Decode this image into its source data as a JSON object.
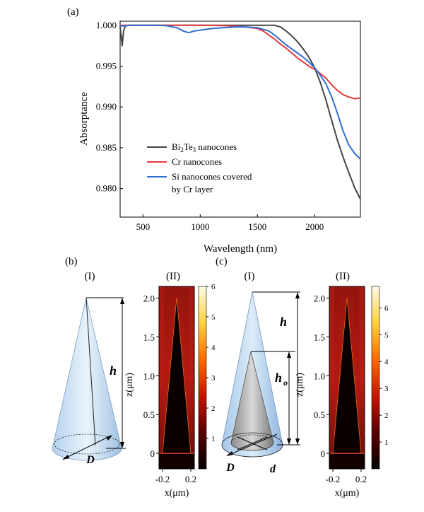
{
  "panels": {
    "a": {
      "label": "(a)"
    },
    "b": {
      "label": "(b)",
      "sub1": "(I)",
      "sub2": "(II)",
      "height_symbol": "h",
      "diameter_symbol": "D"
    },
    "c": {
      "label": "(c)",
      "sub1": "(I)",
      "sub2": "(II)",
      "height_symbol": "h",
      "inner_height_symbol": "h",
      "inner_height_subscript": "o",
      "diameter_symbol": "D",
      "inner_diameter_symbol": "d"
    }
  },
  "chart_data": [
    {
      "type": "line",
      "title": "",
      "xlabel": "Wavelength (nm)",
      "ylabel": "Absorptance",
      "xlim": [
        300,
        2400
      ],
      "ylim": [
        0.9765,
        1.0005
      ],
      "xticks": [
        500,
        1000,
        1500,
        2000
      ],
      "yticks": [
        0.98,
        0.985,
        0.99,
        0.995,
        1.0
      ],
      "ytick_labels": [
        "0.980",
        "0.985",
        "0.990",
        "0.995",
        "1.000"
      ],
      "legend_position": "lower-left",
      "series": [
        {
          "name": "Bi2Te3 nanocones",
          "name_parts": [
            "Bi",
            "2",
            "Te",
            "3",
            " nanocones"
          ],
          "color": "#444444",
          "x": [
            300,
            318,
            330,
            345,
            360,
            400,
            600,
            800,
            1000,
            1200,
            1400,
            1600,
            1650,
            1700,
            1750,
            1800,
            1850,
            1900,
            1950,
            2000,
            2050,
            2100,
            2150,
            2200,
            2250,
            2300,
            2350,
            2400
          ],
          "y": [
            0.9998,
            0.9975,
            0.9993,
            0.9999,
            1.0,
            1.0,
            1.0,
            1.0,
            1.0,
            1.0,
            1.0,
            1.0,
            1.0,
            0.9998,
            0.9993,
            0.9987,
            0.998,
            0.9971,
            0.9961,
            0.9948,
            0.993,
            0.9908,
            0.9883,
            0.9859,
            0.9838,
            0.9819,
            0.9801,
            0.9787
          ]
        },
        {
          "name": "Cr nanocones",
          "name_parts": [
            "Cr nanocones"
          ],
          "color": "#e8383d",
          "x": [
            300,
            400,
            600,
            800,
            1000,
            1200,
            1300,
            1400,
            1500,
            1550,
            1600,
            1650,
            1700,
            1750,
            1800,
            1850,
            1900,
            1950,
            2000,
            2050,
            2100,
            2150,
            2200,
            2250,
            2300,
            2350,
            2400
          ],
          "y": [
            1.0,
            1.0,
            1.0,
            1.0,
            1.0,
            0.99995,
            0.9999,
            0.9998,
            0.9996,
            0.9993,
            0.9988,
            0.9983,
            0.9977,
            0.9972,
            0.9966,
            0.996,
            0.9955,
            0.995,
            0.9946,
            0.9941,
            0.9935,
            0.9927,
            0.992,
            0.9915,
            0.9912,
            0.991,
            0.9911
          ]
        },
        {
          "name": "Si nanocones covered by Cr layer",
          "name_parts": [
            "Si nanocones covered",
            "by Cr layer"
          ],
          "color": "#2e6fd3",
          "x": [
            300,
            400,
            500,
            600,
            700,
            800,
            850,
            900,
            950,
            1000,
            1100,
            1200,
            1300,
            1400,
            1500,
            1600,
            1650,
            1700,
            1750,
            1800,
            1850,
            1900,
            1950,
            2000,
            2050,
            2100,
            2150,
            2200,
            2250,
            2300,
            2350,
            2400
          ],
          "y": [
            0.9999,
            1.0,
            1.0,
            1.0,
            0.99995,
            0.9997,
            0.9993,
            0.9991,
            0.9993,
            0.9994,
            0.9996,
            0.9997,
            0.9998,
            0.9998,
            0.9997,
            0.9993,
            0.9988,
            0.9982,
            0.9976,
            0.9971,
            0.9966,
            0.9961,
            0.9955,
            0.9948,
            0.9939,
            0.9928,
            0.9912,
            0.9892,
            0.987,
            0.9853,
            0.9843,
            0.9836
          ]
        }
      ]
    },
    {
      "type": "heatmap",
      "panel": "b(II)",
      "xlabel": "x(μm)",
      "ylabel": "z(μm)",
      "xlim": [
        -0.25,
        0.25
      ],
      "ylim": [
        -0.2,
        2.15
      ],
      "xticks": [
        -0.2,
        0.2
      ],
      "xtick_labels": [
        "-0.2",
        "0.2"
      ],
      "yticks": [
        0,
        0.5,
        1.0,
        1.5,
        2.0
      ],
      "ytick_labels": [
        "0",
        "0.5",
        "1.0",
        "1.5",
        "2.0"
      ],
      "colorbar_range": [
        0,
        6
      ],
      "colorbar_ticks": [
        1,
        2,
        3,
        4,
        5,
        6
      ],
      "colorbar_labels": [
        "1",
        "2",
        "3",
        "4",
        "5",
        "6"
      ],
      "cone_height": 2.0,
      "cone_base_radius": 0.2
    },
    {
      "type": "heatmap",
      "panel": "c(II)",
      "xlabel": "x(μm)",
      "ylabel": "z(μm)",
      "xlim": [
        -0.25,
        0.25
      ],
      "ylim": [
        -0.2,
        2.15
      ],
      "xticks": [
        -0.2,
        0.2
      ],
      "xtick_labels": [
        "-0.2",
        "0.2"
      ],
      "yticks": [
        0,
        0.5,
        1.0,
        1.5,
        2.0
      ],
      "ytick_labels": [
        "0",
        "0.5",
        "1.0",
        "1.5",
        "2.0"
      ],
      "colorbar_range": [
        0,
        6.8
      ],
      "colorbar_ticks": [
        1,
        2,
        3,
        4,
        5,
        6
      ],
      "colorbar_labels": [
        "1",
        "2",
        "3",
        "4",
        "5",
        "6"
      ],
      "cone_height": 2.0,
      "cone_base_radius": 0.2
    }
  ]
}
